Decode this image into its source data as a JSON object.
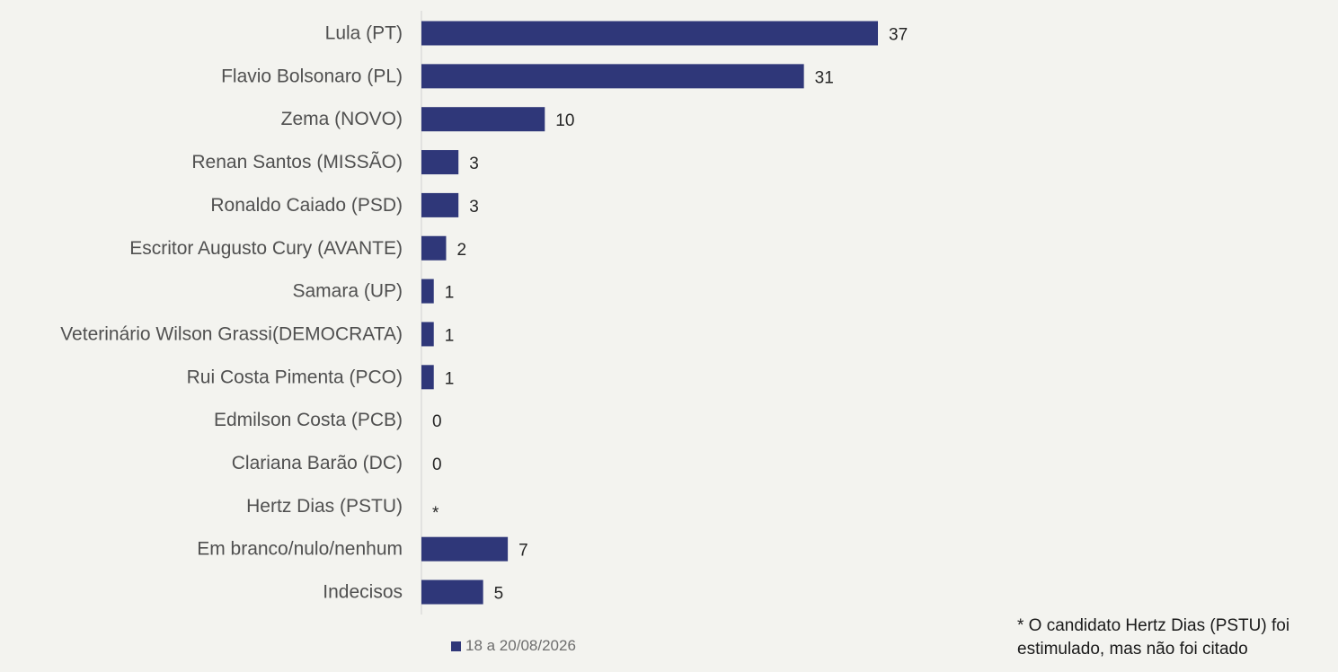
{
  "chart_data": {
    "type": "bar",
    "orientation": "horizontal",
    "categories": [
      "Lula (PT)",
      "Flavio Bolsonaro (PL)",
      "Zema (NOVO)",
      "Renan Santos (MISSÃO)",
      "Ronaldo Caiado (PSD)",
      "Escritor Augusto Cury (AVANTE)",
      "Samara (UP)",
      "Veterinário Wilson Grassi(DEMOCRATA)",
      "Rui Costa Pimenta (PCO)",
      "Edmilson Costa (PCB)",
      "Clariana Barão (DC)",
      "Hertz Dias (PSTU)",
      "Em branco/nulo/nenhum",
      "Indecisos"
    ],
    "series": [
      {
        "name": "18 a 20/08/2026",
        "color": "#2f3779",
        "values": [
          37,
          31,
          10,
          3,
          3,
          2,
          1,
          1,
          1,
          0,
          0,
          null,
          7,
          5
        ],
        "labels": [
          "37",
          "31",
          "10",
          "3",
          "3",
          "2",
          "1",
          "1",
          "1",
          "0",
          "0",
          "*",
          "7",
          "5"
        ]
      }
    ],
    "xlim": [
      0,
      100
    ],
    "grid": false,
    "legend_position": "bottom",
    "footnote": "* O candidato Hertz Dias (PSTU) foi estimulado, mas não foi citado"
  }
}
